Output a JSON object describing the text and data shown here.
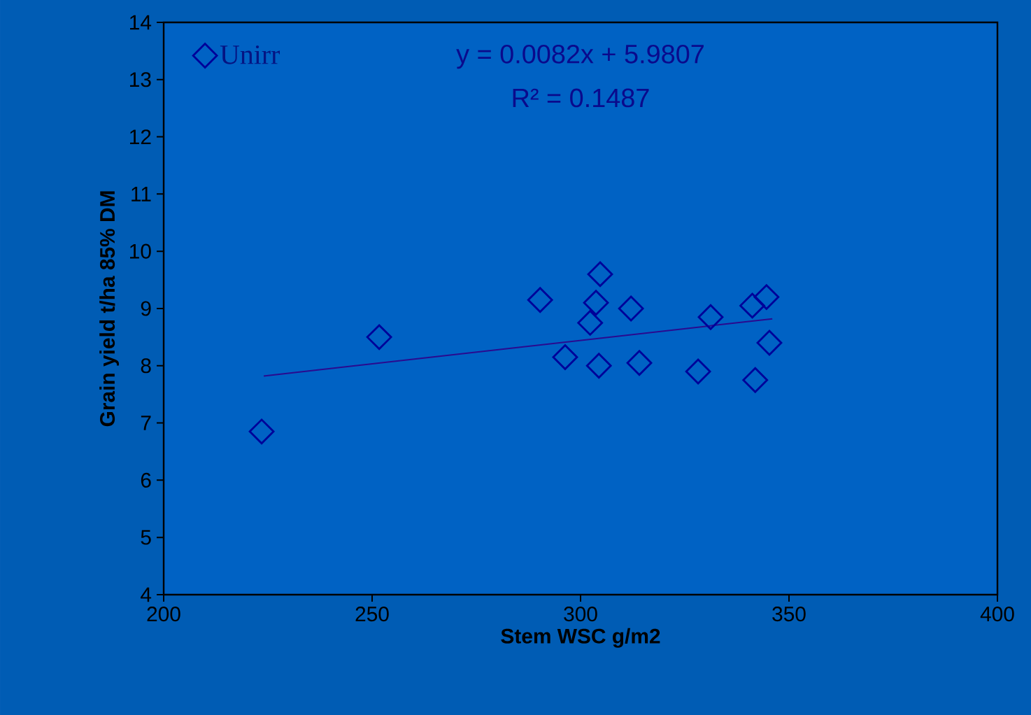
{
  "chart_data": {
    "type": "scatter",
    "xlabel": "Stem WSC g/m2",
    "ylabel": "Grain yield t/ha 85% DM",
    "xlim": [
      200,
      400
    ],
    "xticks": [
      200,
      250,
      300,
      350,
      400
    ],
    "ylim": [
      4,
      14
    ],
    "yticks": [
      4,
      5,
      6,
      7,
      8,
      9,
      10,
      11,
      12,
      13,
      14
    ],
    "grid": false,
    "legend": "top left",
    "series": [
      {
        "name": "Unirr",
        "color": "#000099",
        "marker": "diamond",
        "x": [
          223.5,
          251.7,
          290.3,
          304.7,
          303.7,
          302.3,
          296.3,
          304.4,
          312.1,
          314.1,
          328.2,
          331.2,
          341.2,
          344.6,
          341.9,
          345.3
        ],
        "values": [
          6.85,
          8.5,
          9.15,
          9.6,
          9.1,
          8.75,
          8.15,
          8.0,
          9.0,
          8.05,
          7.9,
          8.85,
          9.05,
          9.2,
          7.75,
          8.4
        ]
      },
      {
        "type": "line",
        "marker": "none",
        "color": "#2a0a8f",
        "x": [
          224,
          346
        ],
        "values": [
          7.82,
          8.82
        ]
      }
    ],
    "annotations": [
      "y = 0.0082x + 5.9807",
      "R² = 0.1487"
    ]
  }
}
